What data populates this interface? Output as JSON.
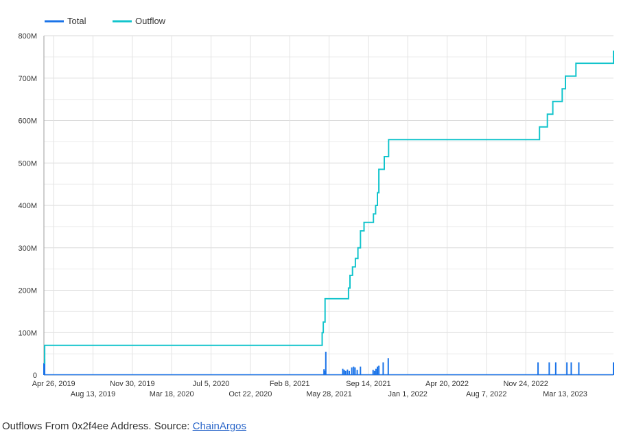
{
  "chart_data": {
    "type": "line",
    "title": "",
    "xlabel": "",
    "ylabel": "",
    "ylim": [
      0,
      800000000
    ],
    "grid": true,
    "legend_position": "top-left",
    "y_ticks": [
      {
        "value": 0,
        "label": "0"
      },
      {
        "value": 100000000,
        "label": "100M"
      },
      {
        "value": 200000000,
        "label": "200M"
      },
      {
        "value": 300000000,
        "label": "300M"
      },
      {
        "value": 400000000,
        "label": "400M"
      },
      {
        "value": 500000000,
        "label": "500M"
      },
      {
        "value": 600000000,
        "label": "600M"
      },
      {
        "value": 700000000,
        "label": "700M"
      },
      {
        "value": 800000000,
        "label": "800M"
      }
    ],
    "x_range": [
      "2019-03-30",
      "2023-07-25"
    ],
    "x_ticks": [
      {
        "date": "2019-04-26",
        "label": "Apr 26, 2019",
        "row": 0
      },
      {
        "date": "2019-08-13",
        "label": "Aug 13, 2019",
        "row": 1
      },
      {
        "date": "2019-11-30",
        "label": "Nov 30, 2019",
        "row": 0
      },
      {
        "date": "2020-03-18",
        "label": "Mar 18, 2020",
        "row": 1
      },
      {
        "date": "2020-07-05",
        "label": "Jul 5, 2020",
        "row": 0
      },
      {
        "date": "2020-10-22",
        "label": "Oct 22, 2020",
        "row": 1
      },
      {
        "date": "2021-02-08",
        "label": "Feb 8, 2021",
        "row": 0
      },
      {
        "date": "2021-05-28",
        "label": "May 28, 2021",
        "row": 1
      },
      {
        "date": "2021-09-14",
        "label": "Sep 14, 2021",
        "row": 0
      },
      {
        "date": "2022-01-01",
        "label": "Jan 1, 2022",
        "row": 1
      },
      {
        "date": "2022-04-20",
        "label": "Apr 20, 2022",
        "row": 0
      },
      {
        "date": "2022-08-07",
        "label": "Aug 7, 2022",
        "row": 1
      },
      {
        "date": "2022-11-24",
        "label": "Nov 24, 2022",
        "row": 0
      },
      {
        "date": "2023-03-13",
        "label": "Mar 13, 2023",
        "row": 1
      }
    ],
    "series": [
      {
        "name": "Total",
        "color": "#1a73e8",
        "style": "spikes",
        "points": [
          [
            "2019-03-30",
            28000000
          ],
          [
            "2019-04-01",
            37000000
          ],
          [
            "2021-05-14",
            14000000
          ],
          [
            "2021-05-16",
            10000000
          ],
          [
            "2021-05-19",
            55000000
          ],
          [
            "2021-07-05",
            15000000
          ],
          [
            "2021-07-09",
            12000000
          ],
          [
            "2021-07-13",
            10000000
          ],
          [
            "2021-07-18",
            13000000
          ],
          [
            "2021-07-23",
            10000000
          ],
          [
            "2021-07-30",
            18000000
          ],
          [
            "2021-08-04",
            20000000
          ],
          [
            "2021-08-08",
            18000000
          ],
          [
            "2021-08-14",
            12000000
          ],
          [
            "2021-08-23",
            20000000
          ],
          [
            "2021-09-27",
            12000000
          ],
          [
            "2021-10-01",
            10000000
          ],
          [
            "2021-10-05",
            15000000
          ],
          [
            "2021-10-09",
            20000000
          ],
          [
            "2021-10-13",
            22000000
          ],
          [
            "2021-10-25",
            30000000
          ],
          [
            "2021-11-08",
            40000000
          ],
          [
            "2022-12-28",
            30000000
          ],
          [
            "2023-01-28",
            30000000
          ],
          [
            "2023-02-15",
            30000000
          ],
          [
            "2023-03-18",
            30000000
          ],
          [
            "2023-03-30",
            30000000
          ],
          [
            "2023-04-20",
            30000000
          ],
          [
            "2023-07-25",
            30000000
          ]
        ]
      },
      {
        "name": "Outflow",
        "color": "#12c4cc",
        "style": "step",
        "points": [
          [
            "2019-03-30",
            28000000
          ],
          [
            "2019-04-01",
            70000000
          ],
          [
            "2021-05-07",
            70000000
          ],
          [
            "2021-05-09",
            100000000
          ],
          [
            "2021-05-12",
            125000000
          ],
          [
            "2021-05-17",
            180000000
          ],
          [
            "2021-07-19",
            180000000
          ],
          [
            "2021-07-21",
            205000000
          ],
          [
            "2021-07-25",
            235000000
          ],
          [
            "2021-08-01",
            255000000
          ],
          [
            "2021-08-09",
            275000000
          ],
          [
            "2021-08-16",
            300000000
          ],
          [
            "2021-08-23",
            340000000
          ],
          [
            "2021-09-02",
            360000000
          ],
          [
            "2021-09-25",
            360000000
          ],
          [
            "2021-09-28",
            380000000
          ],
          [
            "2021-10-04",
            400000000
          ],
          [
            "2021-10-09",
            430000000
          ],
          [
            "2021-10-13",
            485000000
          ],
          [
            "2021-10-28",
            515000000
          ],
          [
            "2021-11-09",
            555000000
          ],
          [
            "2022-12-28",
            555000000
          ],
          [
            "2023-01-01",
            585000000
          ],
          [
            "2023-01-23",
            615000000
          ],
          [
            "2023-02-07",
            645000000
          ],
          [
            "2023-03-05",
            675000000
          ],
          [
            "2023-03-14",
            705000000
          ],
          [
            "2023-04-12",
            735000000
          ],
          [
            "2023-07-22",
            735000000
          ],
          [
            "2023-07-25",
            765000000
          ]
        ]
      }
    ]
  },
  "caption": {
    "text": "Outflows From 0x2f4ee Address. Source: ",
    "link_text": "ChainArgos"
  }
}
